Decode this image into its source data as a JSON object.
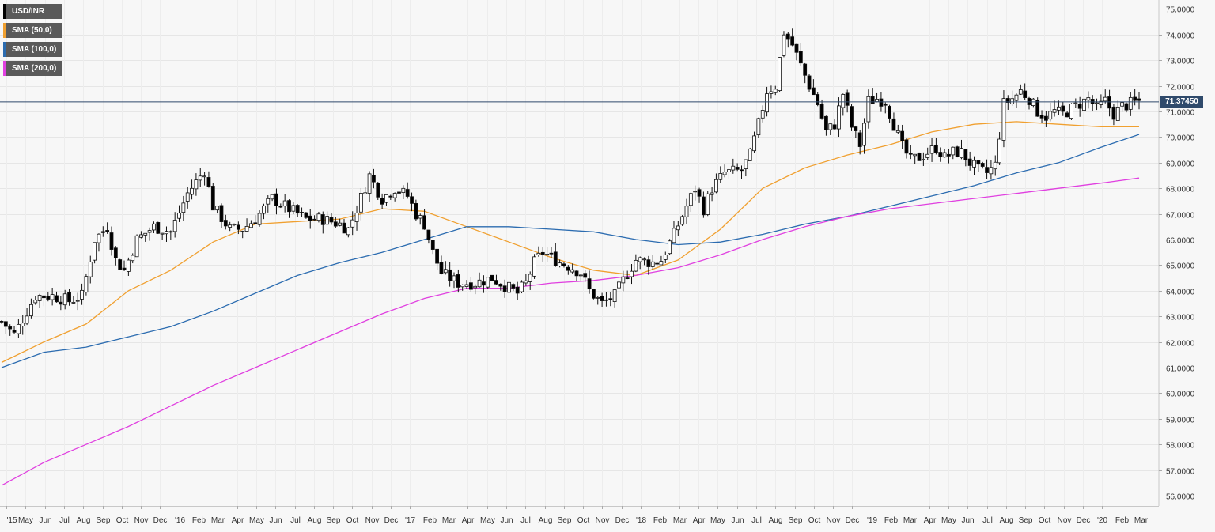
{
  "chart_data": {
    "type": "candlestick",
    "symbol": "USD/INR",
    "timeframe": "weekly",
    "last_price": 71.3745,
    "last_price_label": "71.37450",
    "ylim": [
      55.6,
      75.35
    ],
    "y_ticks": [
      "56.0000",
      "57.0000",
      "58.0000",
      "59.0000",
      "60.0000",
      "61.0000",
      "62.0000",
      "63.0000",
      "64.0000",
      "65.0000",
      "66.0000",
      "67.0000",
      "68.0000",
      "69.0000",
      "70.0000",
      "71.0000",
      "72.0000",
      "73.0000",
      "74.0000",
      "75.0000"
    ],
    "x_tick_labels": [
      "'15",
      "May",
      "Jun",
      "Jul",
      "Aug",
      "Sep",
      "Oct",
      "Nov",
      "Dec",
      "'16",
      "Feb",
      "Mar",
      "Apr",
      "May",
      "Jun",
      "Jul",
      "Aug",
      "Sep",
      "Oct",
      "Nov",
      "Dec",
      "'17",
      "Feb",
      "Mar",
      "Apr",
      "May",
      "Jun",
      "Jul",
      "Aug",
      "Sep",
      "Oct",
      "Nov",
      "Dec",
      "'18",
      "Feb",
      "Mar",
      "Apr",
      "May",
      "Jun",
      "Jul",
      "Aug",
      "Sep",
      "Oct",
      "Nov",
      "Dec",
      "'19",
      "Feb",
      "Mar",
      "Apr",
      "May",
      "Jun",
      "Jul",
      "Aug",
      "Sep",
      "Oct",
      "Nov",
      "Dec",
      "'20",
      "Feb",
      "Mar"
    ],
    "legend": [
      {
        "name": "USD/INR",
        "color": "#000000"
      },
      {
        "name": "SMA (50,0)",
        "color": "#f0a030"
      },
      {
        "name": "SMA (100,0)",
        "color": "#2c6cb0"
      },
      {
        "name": "SMA (200,0)",
        "color": "#e040e0"
      }
    ],
    "price_anchors": [
      [
        0,
        62.8
      ],
      [
        3,
        62.3
      ],
      [
        8,
        63.8
      ],
      [
        12,
        63.8
      ],
      [
        16,
        63.6
      ],
      [
        19,
        63.8
      ],
      [
        22,
        66.0
      ],
      [
        25,
        66.5
      ],
      [
        27,
        65.2
      ],
      [
        29,
        64.8
      ],
      [
        32,
        66.0
      ],
      [
        36,
        66.5
      ],
      [
        40,
        66.3
      ],
      [
        44,
        67.8
      ],
      [
        48,
        68.7
      ],
      [
        50,
        67.3
      ],
      [
        54,
        66.4
      ],
      [
        57,
        66.4
      ],
      [
        60,
        66.8
      ],
      [
        64,
        67.6
      ],
      [
        68,
        67.2
      ],
      [
        72,
        66.8
      ],
      [
        76,
        66.8
      ],
      [
        80,
        66.6
      ],
      [
        82,
        66.4
      ],
      [
        84,
        67.2
      ],
      [
        87,
        68.5
      ],
      [
        90,
        67.6
      ],
      [
        93,
        68.0
      ],
      [
        96,
        67.7
      ],
      [
        98,
        67.0
      ],
      [
        100,
        66.6
      ],
      [
        102,
        65.5
      ],
      [
        104,
        64.7
      ],
      [
        108,
        64.3
      ],
      [
        112,
        64.3
      ],
      [
        116,
        64.5
      ],
      [
        119,
        64.2
      ],
      [
        122,
        63.9
      ],
      [
        124,
        64.3
      ],
      [
        126,
        65.1
      ],
      [
        128,
        65.5
      ],
      [
        132,
        65.1
      ],
      [
        135,
        64.9
      ],
      [
        137,
        64.7
      ],
      [
        139,
        64.0
      ],
      [
        142,
        63.5
      ],
      [
        145,
        63.8
      ],
      [
        148,
        64.7
      ],
      [
        150,
        65.2
      ],
      [
        154,
        65.1
      ],
      [
        156,
        65.2
      ],
      [
        159,
        66.2
      ],
      [
        162,
        67.3
      ],
      [
        164,
        68.0
      ],
      [
        166,
        67.2
      ],
      [
        168,
        68.0
      ],
      [
        171,
        68.6
      ],
      [
        175,
        68.7
      ],
      [
        177,
        69.3
      ],
      [
        179,
        70.5
      ],
      [
        181,
        71.8
      ],
      [
        183,
        72.0
      ],
      [
        185,
        74.1
      ],
      [
        187,
        73.6
      ],
      [
        189,
        72.8
      ],
      [
        191,
        72.0
      ],
      [
        193,
        71.3
      ],
      [
        195,
        70.2
      ],
      [
        197,
        70.5
      ],
      [
        199,
        71.7
      ],
      [
        201,
        70.4
      ],
      [
        203,
        69.7
      ],
      [
        205,
        71.4
      ],
      [
        207,
        71.5
      ],
      [
        209,
        71.4
      ],
      [
        211,
        70.5
      ],
      [
        213,
        69.6
      ],
      [
        215,
        69.1
      ],
      [
        217,
        69.2
      ],
      [
        219,
        69.4
      ],
      [
        221,
        69.6
      ],
      [
        223,
        69.2
      ],
      [
        225,
        69.4
      ],
      [
        227,
        69.4
      ],
      [
        229,
        69.0
      ],
      [
        231,
        68.7
      ],
      [
        233,
        68.6
      ],
      [
        235,
        68.9
      ],
      [
        237,
        71.3
      ],
      [
        239,
        71.5
      ],
      [
        241,
        71.8
      ],
      [
        243,
        71.5
      ],
      [
        245,
        71.0
      ],
      [
        247,
        70.8
      ],
      [
        249,
        71.0
      ],
      [
        251,
        70.9
      ],
      [
        253,
        71.1
      ],
      [
        255,
        71.3
      ],
      [
        257,
        71.5
      ],
      [
        259,
        71.1
      ],
      [
        261,
        71.4
      ],
      [
        263,
        70.9
      ],
      [
        265,
        71.2
      ],
      [
        267,
        71.3
      ],
      [
        269,
        71.4
      ]
    ],
    "series": [
      {
        "name": "SMA (50,0)",
        "color": "#f0a030",
        "points": [
          [
            0,
            61.2
          ],
          [
            10,
            62.0
          ],
          [
            20,
            62.7
          ],
          [
            30,
            64.0
          ],
          [
            40,
            64.8
          ],
          [
            50,
            65.9
          ],
          [
            60,
            66.6
          ],
          [
            70,
            66.7
          ],
          [
            80,
            66.8
          ],
          [
            90,
            67.2
          ],
          [
            100,
            67.1
          ],
          [
            110,
            66.5
          ],
          [
            120,
            65.9
          ],
          [
            130,
            65.3
          ],
          [
            140,
            64.8
          ],
          [
            150,
            64.6
          ],
          [
            160,
            65.2
          ],
          [
            170,
            66.4
          ],
          [
            180,
            68.0
          ],
          [
            190,
            68.8
          ],
          [
            200,
            69.3
          ],
          [
            210,
            69.7
          ],
          [
            220,
            70.2
          ],
          [
            230,
            70.5
          ],
          [
            240,
            70.6
          ],
          [
            250,
            70.5
          ],
          [
            260,
            70.4
          ],
          [
            269,
            70.4
          ]
        ]
      },
      {
        "name": "SMA (100,0)",
        "color": "#2c6cb0",
        "points": [
          [
            0,
            61.0
          ],
          [
            10,
            61.6
          ],
          [
            20,
            61.8
          ],
          [
            30,
            62.2
          ],
          [
            40,
            62.6
          ],
          [
            50,
            63.2
          ],
          [
            60,
            63.9
          ],
          [
            70,
            64.6
          ],
          [
            80,
            65.1
          ],
          [
            90,
            65.5
          ],
          [
            100,
            66.0
          ],
          [
            110,
            66.5
          ],
          [
            120,
            66.5
          ],
          [
            130,
            66.4
          ],
          [
            140,
            66.3
          ],
          [
            150,
            66.0
          ],
          [
            160,
            65.8
          ],
          [
            170,
            65.9
          ],
          [
            180,
            66.2
          ],
          [
            190,
            66.6
          ],
          [
            200,
            66.9
          ],
          [
            210,
            67.3
          ],
          [
            220,
            67.7
          ],
          [
            230,
            68.1
          ],
          [
            240,
            68.6
          ],
          [
            250,
            69.0
          ],
          [
            260,
            69.6
          ],
          [
            269,
            70.1
          ]
        ]
      },
      {
        "name": "SMA (200,0)",
        "color": "#e040e0",
        "points": [
          [
            0,
            56.4
          ],
          [
            10,
            57.3
          ],
          [
            20,
            58.0
          ],
          [
            30,
            58.7
          ],
          [
            40,
            59.5
          ],
          [
            50,
            60.3
          ],
          [
            60,
            61.0
          ],
          [
            70,
            61.7
          ],
          [
            80,
            62.4
          ],
          [
            90,
            63.1
          ],
          [
            100,
            63.7
          ],
          [
            110,
            64.1
          ],
          [
            120,
            64.1
          ],
          [
            130,
            64.3
          ],
          [
            140,
            64.4
          ],
          [
            150,
            64.6
          ],
          [
            160,
            64.9
          ],
          [
            170,
            65.4
          ],
          [
            180,
            66.0
          ],
          [
            190,
            66.5
          ],
          [
            200,
            66.9
          ],
          [
            210,
            67.2
          ],
          [
            220,
            67.4
          ],
          [
            230,
            67.6
          ],
          [
            240,
            67.8
          ],
          [
            250,
            68.0
          ],
          [
            260,
            68.2
          ],
          [
            269,
            68.4
          ]
        ]
      }
    ]
  }
}
